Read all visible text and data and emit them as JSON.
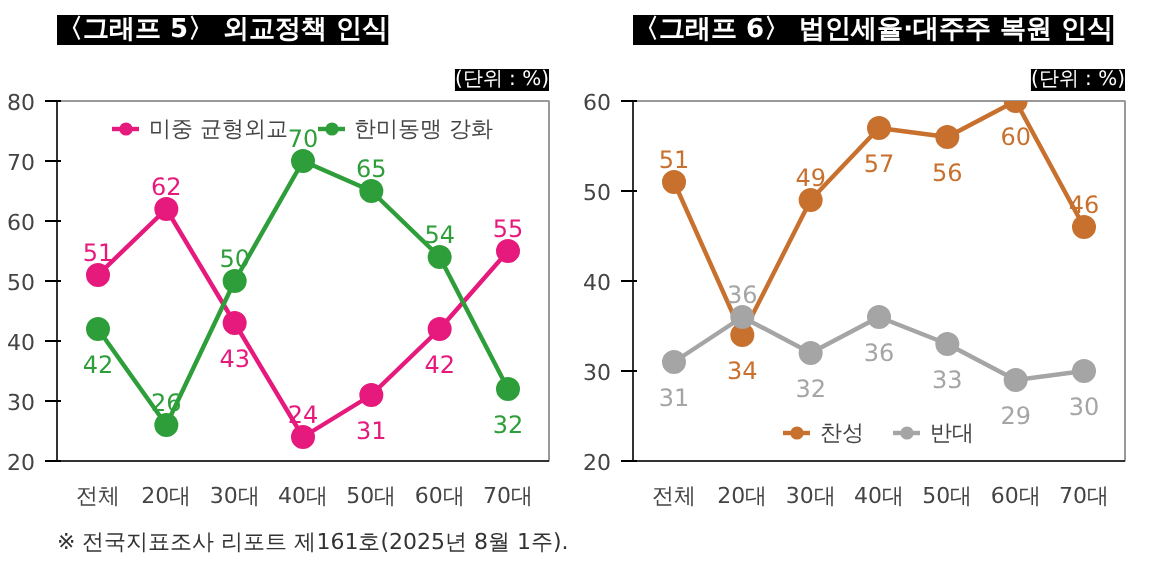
{
  "chart_data": [
    {
      "type": "line",
      "title": "〈그래프 5〉 외교정책 인식",
      "subtitle": "(단위 : %)",
      "categories": [
        "전체",
        "20대",
        "30대",
        "40대",
        "50대",
        "60대",
        "70대"
      ],
      "series": [
        {
          "name": "미중 균형외교",
          "color": "#e6197d",
          "values": [
            51,
            62,
            43,
            24,
            31,
            42,
            55
          ]
        },
        {
          "name": "한미동맹 강화",
          "color": "#2e9e3a",
          "values": [
            42,
            26,
            50,
            70,
            65,
            54,
            32
          ]
        }
      ],
      "ylim": [
        20,
        80
      ],
      "yticks": [
        20,
        30,
        40,
        50,
        60,
        70,
        80
      ],
      "grid": false,
      "legend": "top",
      "marker": "circle",
      "data_labels": true,
      "annotations": [
        "※ 전국지표조사 리포트 제161호(2025년 8월 1주)."
      ]
    },
    {
      "type": "line",
      "title": "〈그래프 6〉 법인세율·대주주 복원 인식",
      "subtitle": "(단위 : %)",
      "categories": [
        "전체",
        "20대",
        "30대",
        "40대",
        "50대",
        "60대",
        "70대"
      ],
      "series": [
        {
          "name": "찬성",
          "color": "#c8702e",
          "values": [
            51,
            34,
            49,
            57,
            56,
            60,
            46
          ]
        },
        {
          "name": "반대",
          "color": "#a5a5a5",
          "values": [
            31,
            36,
            32,
            36,
            33,
            29,
            30
          ]
        }
      ],
      "ylim": [
        20,
        60
      ],
      "yticks": [
        20,
        30,
        40,
        50,
        60
      ],
      "grid": false,
      "legend": "bottom",
      "marker": "circle",
      "data_labels": true
    }
  ]
}
